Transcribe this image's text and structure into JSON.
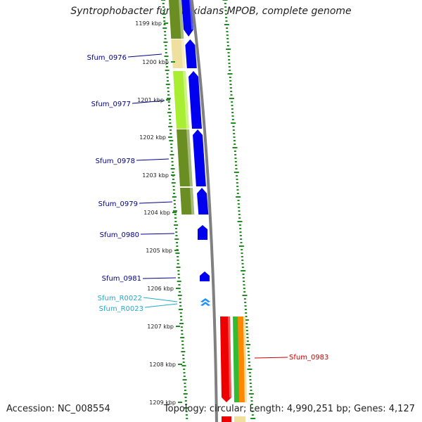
{
  "title": "Syntrophobacter fumaroxidans MPOB, complete genome",
  "footer": {
    "accession": "Accession: NC_008554",
    "topology": "Topology: circular; Length: 4,990,251 bp; Genes: 4,127"
  },
  "kbp_labels": [
    "1199 kbp",
    "1200 kbp",
    "1201 kbp",
    "1202 kbp",
    "1203 kbp",
    "1204 kbp",
    "1205 kbp",
    "1206 kbp",
    "1207 kbp",
    "1208 kbp",
    "1209 kbp"
  ],
  "genes": [
    {
      "name": "Sfum_0976",
      "color": "#00008b"
    },
    {
      "name": "Sfum_0977",
      "color": "#00008b"
    },
    {
      "name": "Sfum_0978",
      "color": "#00008b"
    },
    {
      "name": "Sfum_0979",
      "color": "#00008b"
    },
    {
      "name": "Sfum_0980",
      "color": "#00008b"
    },
    {
      "name": "Sfum_0981",
      "color": "#00008b"
    },
    {
      "name": "Sfum_R0022",
      "color": "#22aacc"
    },
    {
      "name": "Sfum_R0023",
      "color": "#22aacc"
    },
    {
      "name": "Sfum_0983",
      "color": "#cc0000"
    }
  ],
  "colors": {
    "cds_forward": "#0000ee",
    "rna": "#1e90ff",
    "cds_reverse": "#ee0000",
    "cog_olive": "#6b8e23",
    "cog_wheat": "#f0e0a0",
    "cog_light_green": "#aaee33",
    "cog_green": "#33bb33",
    "cog_orange": "#ff8800",
    "backbone": "#808080",
    "gc_tick": "#228b22"
  }
}
